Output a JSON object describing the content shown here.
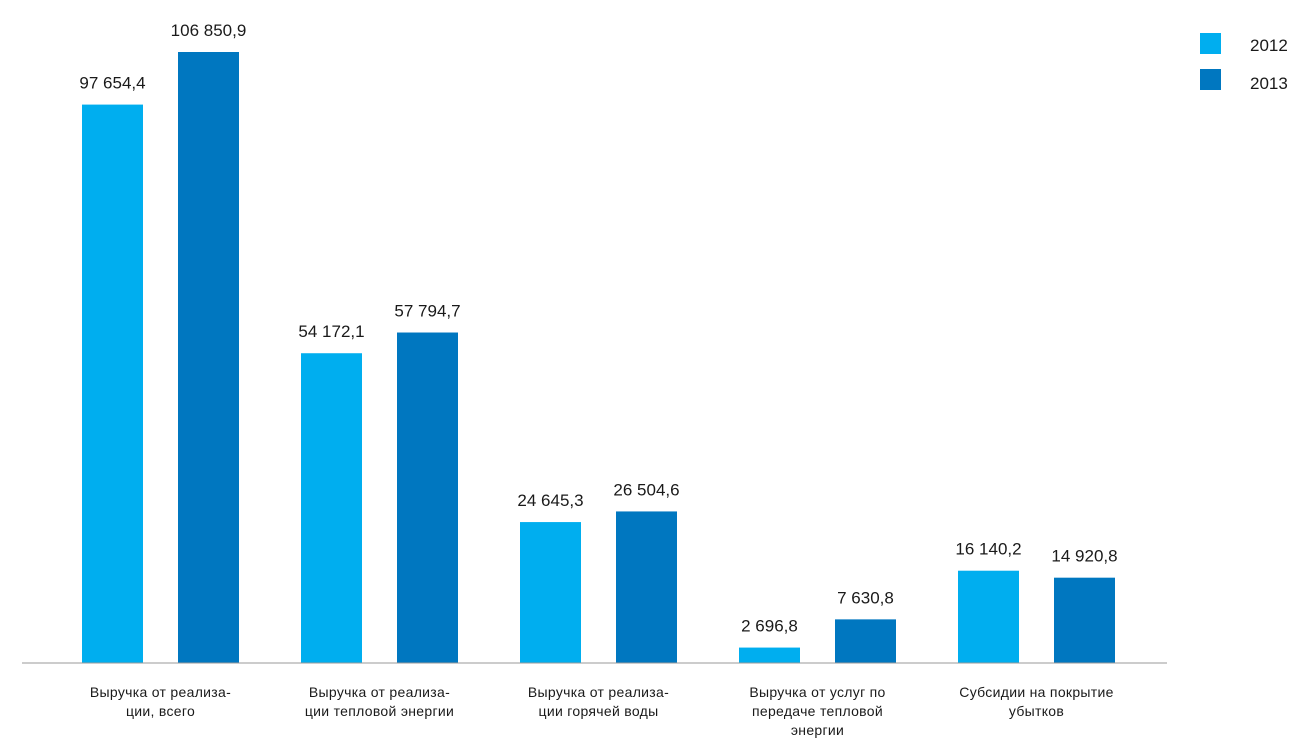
{
  "chart_data": {
    "type": "bar",
    "categories": [
      [
        "Выручка от реализа-",
        "ции, всего"
      ],
      [
        "Выручка от реализа-",
        "ции тепловой энергии"
      ],
      [
        "Выручка от реализа-",
        "ции горячей воды"
      ],
      [
        "Выручка от услуг по",
        "передаче тепловой",
        "энергии"
      ],
      [
        "Субсидии на покрытие",
        "убытков"
      ]
    ],
    "series": [
      {
        "name": "2012",
        "color": "#00aeef",
        "values": [
          97654.4,
          54172.1,
          24645.3,
          2696.8,
          16140.2
        ],
        "labels": [
          "97 654,4",
          "54 172,1",
          "24 645,3",
          "2 696,8",
          "16 140,2"
        ]
      },
      {
        "name": "2013",
        "color": "#0077c0",
        "values": [
          106850.9,
          57794.7,
          26504.6,
          7630.8,
          14920.8
        ],
        "labels": [
          "106 850,9",
          "57 794,7",
          "26 504,6",
          "7 630,8",
          "14 920,8"
        ]
      }
    ],
    "ylim": [
      0,
      120000
    ],
    "grid": false,
    "legend_position": "top-right",
    "axis_color": "#9a9a9a"
  }
}
